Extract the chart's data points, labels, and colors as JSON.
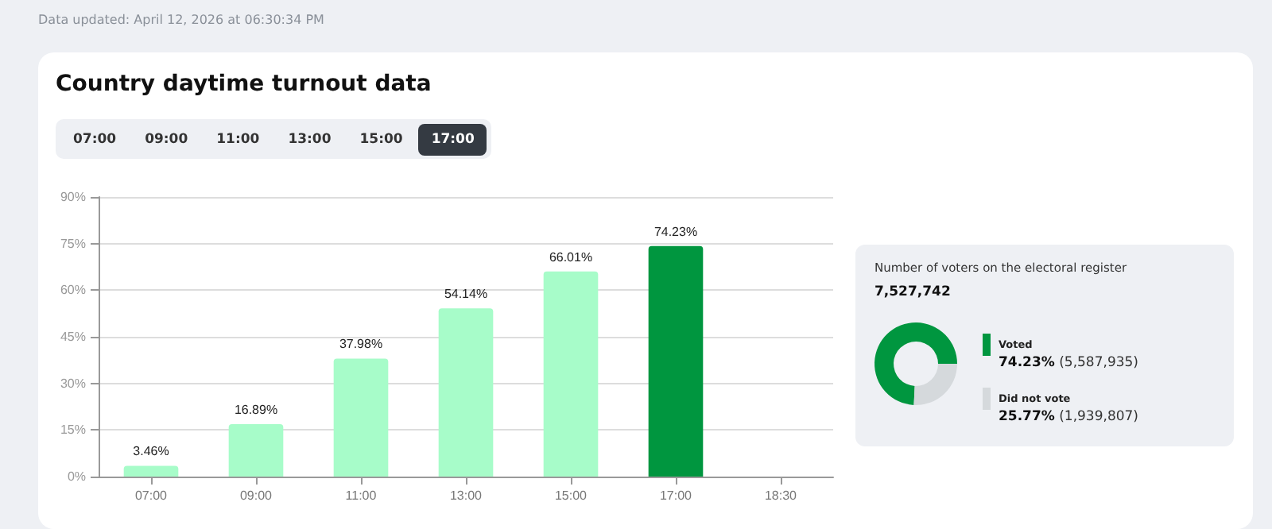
{
  "chart_data": [
    {
      "type": "bar",
      "title": "Country daytime turnout data",
      "annotations": [
        "Data updated: April 12, 2026 at 06:30:34 PM"
      ],
      "categories": [
        "07:00",
        "09:00",
        "11:00",
        "13:00",
        "15:00",
        "17:00",
        "18:30"
      ],
      "values": [
        3.46,
        16.89,
        37.98,
        54.14,
        66.01,
        74.23,
        null
      ],
      "colors": [
        "#a7fcc9",
        "#a7fcc9",
        "#a7fcc9",
        "#a7fcc9",
        "#a7fcc9",
        "#00963f",
        "#a7fcc9"
      ],
      "value_labels": [
        "3.46%",
        "16.89%",
        "37.98%",
        "54.14%",
        "66.01%",
        "74.23%",
        null
      ],
      "ylim": [
        0,
        90
      ],
      "yticks": [
        {
          "value": 0,
          "label": "0%"
        },
        {
          "value": 15,
          "label": "15%"
        },
        {
          "value": 30,
          "label": "30%"
        },
        {
          "value": 45,
          "label": "45%"
        },
        {
          "value": 60,
          "label": "60%"
        },
        {
          "value": 75,
          "label": "75%"
        },
        {
          "value": 90,
          "label": "90%"
        }
      ],
      "grid": "y",
      "legend": false
    },
    {
      "type": "donut",
      "title": "Number of voters on the electoral register",
      "subtitle": "7,527,742",
      "categories": [
        "Voted",
        "Did not vote"
      ],
      "values": [
        74.23,
        25.77
      ],
      "colors": [
        "#00963f",
        "#d5d9dc"
      ],
      "value_labels": [
        "74.23% (5,587,935)",
        "25.77% (1,939,807)"
      ],
      "legend": "right"
    }
  ]
}
